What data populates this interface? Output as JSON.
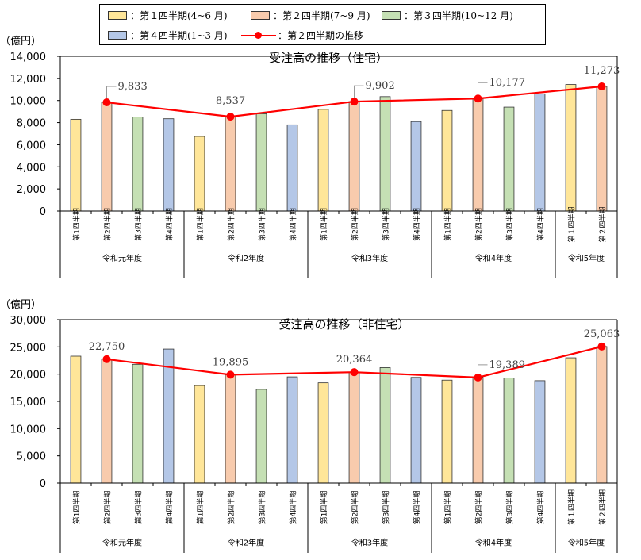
{
  "legend": {
    "q1": "：第１四半期(4~6 月)",
    "q2": "：第２四半期(7~9 月)",
    "q3": "：第３四半期(10~12 月)",
    "q4": "：第４四半期(1~3 月)",
    "trend": "：第２四半期の推移"
  },
  "colors": {
    "q1": "#FFE699",
    "q2": "#F8CBAD",
    "q3": "#C5E0B4",
    "q4": "#B4C7E7",
    "trend": "#FF0000",
    "bar_stroke": "#333333"
  },
  "chart_data": [
    {
      "type": "bar",
      "title": "受注高の推移（住宅）",
      "unit": "（億円）",
      "ylim": [
        0,
        14000
      ],
      "yticks": [
        "0",
        "2,000",
        "4,000",
        "6,000",
        "8,000",
        "10,000",
        "12,000",
        "14,000"
      ],
      "categories": [
        "第1四半期",
        "第2四半期",
        "第3四半期",
        "第4四半期",
        "第1四半期",
        "第2四半期",
        "第3四半期",
        "第4四半期",
        "第1四半期",
        "第2四半期",
        "第3四半期",
        "第4四半期",
        "第1四半期",
        "第2四半期",
        "第3四半期",
        "第4四半期",
        "第１四半期",
        "第２四半期"
      ],
      "quarters": [
        1,
        2,
        3,
        4,
        1,
        2,
        3,
        4,
        1,
        2,
        3,
        4,
        1,
        2,
        3,
        4,
        1,
        2
      ],
      "values": [
        8300,
        9833,
        8500,
        8350,
        6750,
        8537,
        8800,
        7800,
        9200,
        9902,
        10350,
        8100,
        9100,
        10177,
        9400,
        10600,
        11450,
        11273
      ],
      "groups": [
        {
          "label": "令和元年度",
          "count": 4
        },
        {
          "label": "令和2年度",
          "count": 4
        },
        {
          "label": "令和3年度",
          "count": 4
        },
        {
          "label": "令和4年度",
          "count": 4
        },
        {
          "label": "令和5年度",
          "count": 2
        }
      ],
      "trend_series": {
        "name": "第２四半期の推移",
        "indices": [
          1,
          5,
          9,
          13,
          17
        ],
        "values": [
          9833,
          8537,
          9902,
          10177,
          11273
        ],
        "labels": [
          "9,833",
          "8,537",
          "9,902",
          "10,177",
          "11,273"
        ]
      },
      "legend_position": "top"
    },
    {
      "type": "bar",
      "title": "受注高の推移（非住宅）",
      "unit": "（億円）",
      "ylim": [
        0,
        30000
      ],
      "yticks": [
        "0",
        "5,000",
        "10,000",
        "15,000",
        "20,000",
        "25,000",
        "30,000"
      ],
      "categories": [
        "第1四半期",
        "第2四半期",
        "第3四半期",
        "第4四半期",
        "第1四半期",
        "第2四半期",
        "第3四半期",
        "第4四半期",
        "第1四半期",
        "第2四半期",
        "第3四半期",
        "第4四半期",
        "第1四半期",
        "第2四半期",
        "第3四半期",
        "第4四半期",
        "第１四半期",
        "第２四半期"
      ],
      "quarters": [
        1,
        2,
        3,
        4,
        1,
        2,
        3,
        4,
        1,
        2,
        3,
        4,
        1,
        2,
        3,
        4,
        1,
        2
      ],
      "values": [
        23300,
        22750,
        21800,
        24600,
        17900,
        19895,
        17200,
        19500,
        18400,
        20364,
        21200,
        19400,
        18900,
        19389,
        19300,
        18800,
        23000,
        25063
      ],
      "groups": [
        {
          "label": "令和元年度",
          "count": 4
        },
        {
          "label": "令和2年度",
          "count": 4
        },
        {
          "label": "令和3年度",
          "count": 4
        },
        {
          "label": "令和4年度",
          "count": 4
        },
        {
          "label": "令和5年度",
          "count": 2
        }
      ],
      "trend_series": {
        "name": "第２四半期の推移",
        "indices": [
          1,
          5,
          9,
          13,
          17
        ],
        "values": [
          22750,
          19895,
          20364,
          19389,
          25063
        ],
        "labels": [
          "22,750",
          "19,895",
          "20,364",
          "19,389",
          "25,063"
        ]
      },
      "legend_position": "top"
    }
  ]
}
